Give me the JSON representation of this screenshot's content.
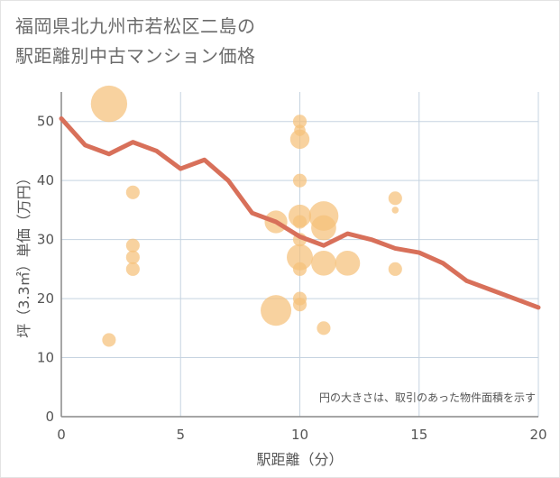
{
  "title": {
    "line1": "福岡県北九州市若松区二島の",
    "line2": "駅距離別中古マンション価格"
  },
  "chart_data": {
    "type": "scatter",
    "xlabel": "駅距離（分）",
    "ylabel": "坪（3.3㎡）単価（万円）",
    "xlim": [
      0,
      20
    ],
    "ylim": [
      0,
      55
    ],
    "x_ticks": [
      "0",
      "5",
      "10",
      "15",
      "20"
    ],
    "y_ticks": [
      "0",
      "10",
      "20",
      "30",
      "40",
      "50"
    ],
    "x_tick_values": [
      0,
      5,
      10,
      15,
      20
    ],
    "y_tick_values": [
      0,
      10,
      20,
      30,
      40,
      50
    ],
    "grid": true,
    "annotation": "円の大きさは、取引のあった物件面積を示す",
    "colors": {
      "bubble": "#f5c07a",
      "line": "#d8705a",
      "grid": "#c5d3e0",
      "axis": "#888888"
    },
    "scatter": [
      {
        "x": 2,
        "y": 53,
        "size": 3.2
      },
      {
        "x": 2,
        "y": 13,
        "size": 1.2
      },
      {
        "x": 3,
        "y": 38,
        "size": 1.2
      },
      {
        "x": 3,
        "y": 29,
        "size": 1.2
      },
      {
        "x": 3,
        "y": 27,
        "size": 1.2
      },
      {
        "x": 3,
        "y": 25,
        "size": 1.2
      },
      {
        "x": 9,
        "y": 33,
        "size": 2.0
      },
      {
        "x": 9,
        "y": 18,
        "size": 2.7
      },
      {
        "x": 10,
        "y": 50,
        "size": 1.2
      },
      {
        "x": 10,
        "y": 48.5,
        "size": 1.0
      },
      {
        "x": 10,
        "y": 47,
        "size": 1.7
      },
      {
        "x": 10,
        "y": 40,
        "size": 1.2
      },
      {
        "x": 10,
        "y": 34,
        "size": 2.0
      },
      {
        "x": 10,
        "y": 33,
        "size": 1.2
      },
      {
        "x": 10,
        "y": 30,
        "size": 1.2
      },
      {
        "x": 10,
        "y": 27,
        "size": 2.3
      },
      {
        "x": 10,
        "y": 25,
        "size": 1.2
      },
      {
        "x": 10,
        "y": 20,
        "size": 1.2
      },
      {
        "x": 10,
        "y": 19,
        "size": 1.2
      },
      {
        "x": 11,
        "y": 34,
        "size": 2.6
      },
      {
        "x": 11,
        "y": 32,
        "size": 2.2
      },
      {
        "x": 11,
        "y": 26,
        "size": 2.2
      },
      {
        "x": 11,
        "y": 15,
        "size": 1.2
      },
      {
        "x": 12,
        "y": 26,
        "size": 2.2
      },
      {
        "x": 14,
        "y": 37,
        "size": 1.2
      },
      {
        "x": 14,
        "y": 35,
        "size": 0.6
      },
      {
        "x": 14,
        "y": 25,
        "size": 1.2
      }
    ],
    "trend_line": {
      "x": [
        0,
        1,
        2,
        3,
        4,
        5,
        6,
        7,
        8,
        9,
        10,
        11,
        12,
        13,
        14,
        15,
        16,
        17,
        18,
        19,
        20
      ],
      "y": [
        50.5,
        46,
        44.5,
        46.5,
        45,
        42,
        43.5,
        40,
        34.5,
        33,
        30.5,
        29,
        31,
        30,
        28.5,
        27.8,
        26,
        23,
        21.5,
        20,
        18.5
      ]
    }
  }
}
